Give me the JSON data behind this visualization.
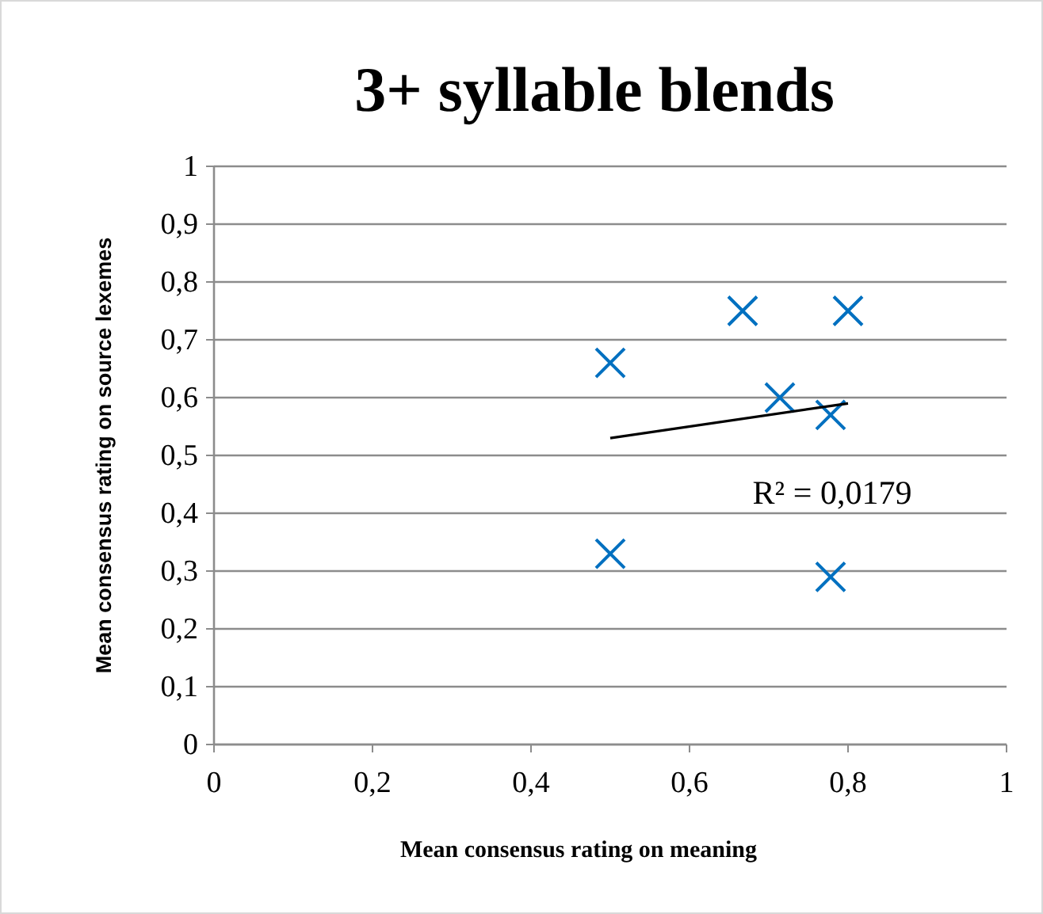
{
  "chart_data": {
    "type": "scatter",
    "title": "3+ syllable blends",
    "xlabel": "Mean consensus rating on meaning",
    "ylabel": "Mean consensus rating on source lexemes",
    "xlim": [
      0,
      1
    ],
    "ylim": [
      0,
      1
    ],
    "xticks": [
      0,
      {
        "value": 0.2,
        "label": "0,2"
      },
      {
        "value": 0.4,
        "label": "0,4"
      },
      {
        "value": 0.6,
        "label": "0,6"
      },
      {
        "value": 0.8,
        "label": "0,8"
      },
      1
    ],
    "yticks": [
      0,
      {
        "value": 0.1,
        "label": "0,1"
      },
      {
        "value": 0.2,
        "label": "0,2"
      },
      {
        "value": 0.3,
        "label": "0,3"
      },
      {
        "value": 0.4,
        "label": "0,4"
      },
      {
        "value": 0.5,
        "label": "0,5"
      },
      {
        "value": 0.6,
        "label": "0,6"
      },
      {
        "value": 0.7,
        "label": "0,7"
      },
      {
        "value": 0.8,
        "label": "0,8"
      },
      {
        "value": 0.9,
        "label": "0,9"
      },
      1
    ],
    "grid": "y",
    "marker": "cross",
    "series": [
      {
        "color": "#0070c0",
        "x": [
          0.5,
          0.5,
          0.667,
          0.714,
          0.778,
          0.778,
          0.8
        ],
        "values": [
          0.66,
          0.33,
          0.75,
          0.6,
          0.57,
          0.29,
          0.75
        ]
      },
      {
        "type": "line",
        "color": "#000000",
        "marker": "none",
        "x": [
          0.5,
          0.8
        ],
        "values": [
          0.53,
          0.59
        ]
      }
    ],
    "annotations": [
      "R² = 0,0179"
    ]
  }
}
